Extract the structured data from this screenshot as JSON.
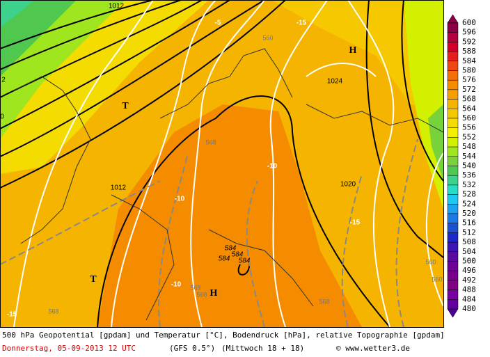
{
  "map": {
    "labels": [
      "1012",
      "-5",
      "-15",
      "560",
      "H",
      "1024",
      "T",
      "2",
      "0",
      "568",
      "1012",
      "-10",
      "1020",
      "-10",
      "-15",
      "584",
      "584",
      "584",
      "584",
      "-10",
      "568",
      "568",
      "H",
      "T",
      "568",
      "-15",
      "560",
      "560",
      "568"
    ]
  },
  "colorbar": {
    "levels": [
      600,
      596,
      592,
      588,
      584,
      580,
      576,
      572,
      568,
      564,
      560,
      556,
      552,
      548,
      544,
      540,
      536,
      532,
      528,
      524,
      520,
      516,
      512,
      508,
      504,
      500,
      496,
      492,
      488,
      484,
      480
    ],
    "colors": [
      "#8c0046",
      "#b4003c",
      "#d20028",
      "#e61e1e",
      "#f04614",
      "#f56e0a",
      "#f58c00",
      "#f5a000",
      "#f5b400",
      "#f5c800",
      "#f5dc00",
      "#f5f000",
      "#d2f000",
      "#a0e61e",
      "#78d23c",
      "#50c850",
      "#3cd28c",
      "#28dcc8",
      "#1ec8f0",
      "#1ea0f0",
      "#1e78e6",
      "#1e50d2",
      "#1e28c8",
      "#3c14b4",
      "#5a0aa0",
      "#6e0096",
      "#78008c",
      "#820082",
      "#7800a0",
      "#6400a0",
      "#500096"
    ]
  },
  "footer": {
    "description": "500 hPa Geopotential [gpdam] und Temperatur [°C], Bodendruck [hPa], relative Topographie [gpdam]",
    "date": "Donnerstag, 05-09-2013  12 UTC",
    "model": "(GFS 0.5°)",
    "run": "(Mittwoch 18 + 18)",
    "copyright": "© www.wetter3.de"
  }
}
